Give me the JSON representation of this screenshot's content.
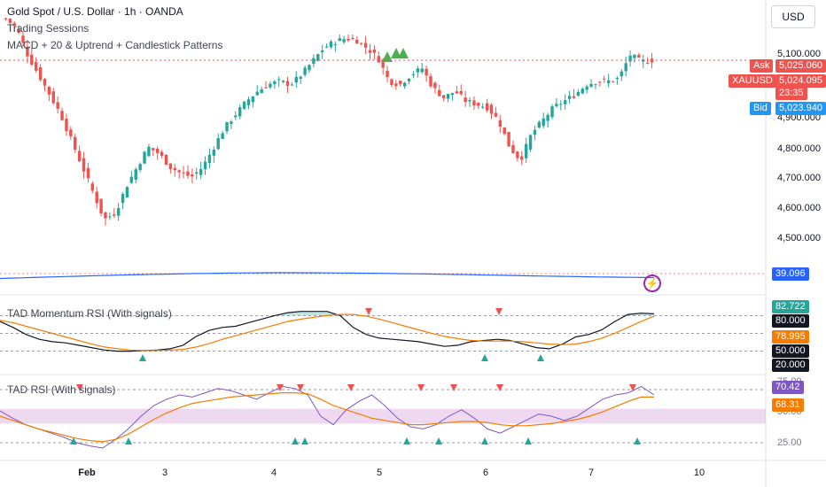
{
  "header": {
    "symbol_line": "Gold Spot / U.S. Dollar · 1h · OANDA",
    "indicator_1": "Trading Sessions",
    "indicator_2": "MACD + 20 & Uptrend + Candlestick Patterns",
    "currency": "USD"
  },
  "colors": {
    "up": "#26a69a",
    "down": "#ef5350",
    "rsi": "#131722",
    "rsi_ma": "#f57c00",
    "rsi2": "#7e57c2",
    "accent_blue": "#2962ff"
  },
  "price_axis": {
    "ticks": [
      "5,100.000",
      "4,900.000",
      "4,800.000",
      "4,700.000",
      "4,600.000",
      "4,500.000"
    ]
  },
  "price_tags": {
    "ask_label": "Ask",
    "ask_value": "5,025.060",
    "symbol_label": "XAUUSD",
    "last_value": "5,024.095",
    "countdown": "23:35",
    "bid_label": "Bid",
    "bid_value": "5,023.940"
  },
  "macd_pane": {
    "value": "39.096"
  },
  "rsi1_pane": {
    "title": "TAD Momentum RSI (With signals)",
    "tags": [
      "82.722",
      "80.000",
      "78.995",
      "50.000",
      "20.000"
    ]
  },
  "rsi2_pane": {
    "title": "TAD RSI (With signals)",
    "tags": [
      "70.42",
      "68.31"
    ],
    "axis": [
      "75.00",
      "50.00",
      "25.00"
    ]
  },
  "time_axis": [
    "Feb",
    "3",
    "4",
    "5",
    "6",
    "7",
    "10"
  ],
  "chart_data": {
    "type": "candlestick",
    "title": "Gold Spot / U.S. Dollar · 1h · OANDA",
    "y_range": [
      4400,
      5180
    ],
    "close_path": [
      5150,
      5120,
      5040,
      4980,
      4920,
      4860,
      4780,
      4700,
      4620,
      4540,
      4560,
      4640,
      4700,
      4760,
      4740,
      4700,
      4680,
      4670,
      4700,
      4760,
      4820,
      4860,
      4900,
      4930,
      4950,
      4960,
      4950,
      4980,
      5020,
      5060,
      5080,
      5090,
      5085,
      5060,
      5030,
      4960,
      4950,
      4980,
      5000,
      4940,
      4910,
      4930,
      4900,
      4890,
      4880,
      4840,
      4760,
      4720,
      4800,
      4840,
      4880,
      4900,
      4920,
      4950,
      4960,
      4960,
      4970,
      5040,
      5020,
      5024
    ],
    "rsi_momentum_range": [
      0,
      100
    ],
    "rsi_momentum": [
      70,
      60,
      48,
      40,
      36,
      34,
      30,
      26,
      22,
      20,
      20,
      21,
      22,
      24,
      30,
      45,
      55,
      60,
      62,
      68,
      74,
      80,
      85,
      87,
      87,
      87,
      80,
      60,
      48,
      42,
      40,
      38,
      36,
      32,
      28,
      30,
      36,
      38,
      40,
      38,
      32,
      26,
      24,
      32,
      44,
      48,
      56,
      70,
      82,
      84,
      83
    ],
    "rsi_ma": [
      72,
      68,
      62,
      56,
      50,
      44,
      38,
      32,
      27,
      24,
      22,
      21,
      21,
      22,
      23,
      27,
      33,
      40,
      46,
      52,
      58,
      64,
      70,
      74,
      77,
      80,
      82,
      82,
      79,
      74,
      68,
      62,
      56,
      50,
      45,
      41,
      38,
      37,
      37,
      37,
      36,
      34,
      32,
      31,
      32,
      36,
      42,
      50,
      60,
      70,
      79
    ],
    "rsi_range": [
      15,
      85
    ],
    "rsi": [
      55,
      48,
      42,
      38,
      34,
      30,
      25,
      22,
      20,
      28,
      38,
      50,
      60,
      66,
      70,
      68,
      72,
      76,
      74,
      70,
      66,
      72,
      78,
      76,
      70,
      50,
      42,
      56,
      64,
      70,
      60,
      48,
      40,
      38,
      42,
      50,
      56,
      48,
      38,
      34,
      40,
      46,
      52,
      50,
      46,
      50,
      58,
      66,
      70,
      72,
      78,
      70
    ],
    "rsi_ma2": [
      50,
      46,
      42,
      38,
      35,
      32,
      29,
      27,
      26,
      28,
      33,
      40,
      47,
      53,
      58,
      62,
      64,
      66,
      68,
      69,
      70,
      71,
      72,
      72,
      71,
      66,
      60,
      56,
      52,
      48,
      46,
      44,
      42,
      42,
      43,
      44,
      45,
      45,
      44,
      42,
      41,
      41,
      42,
      43,
      45,
      47,
      50,
      54,
      59,
      64,
      68,
      68
    ]
  }
}
